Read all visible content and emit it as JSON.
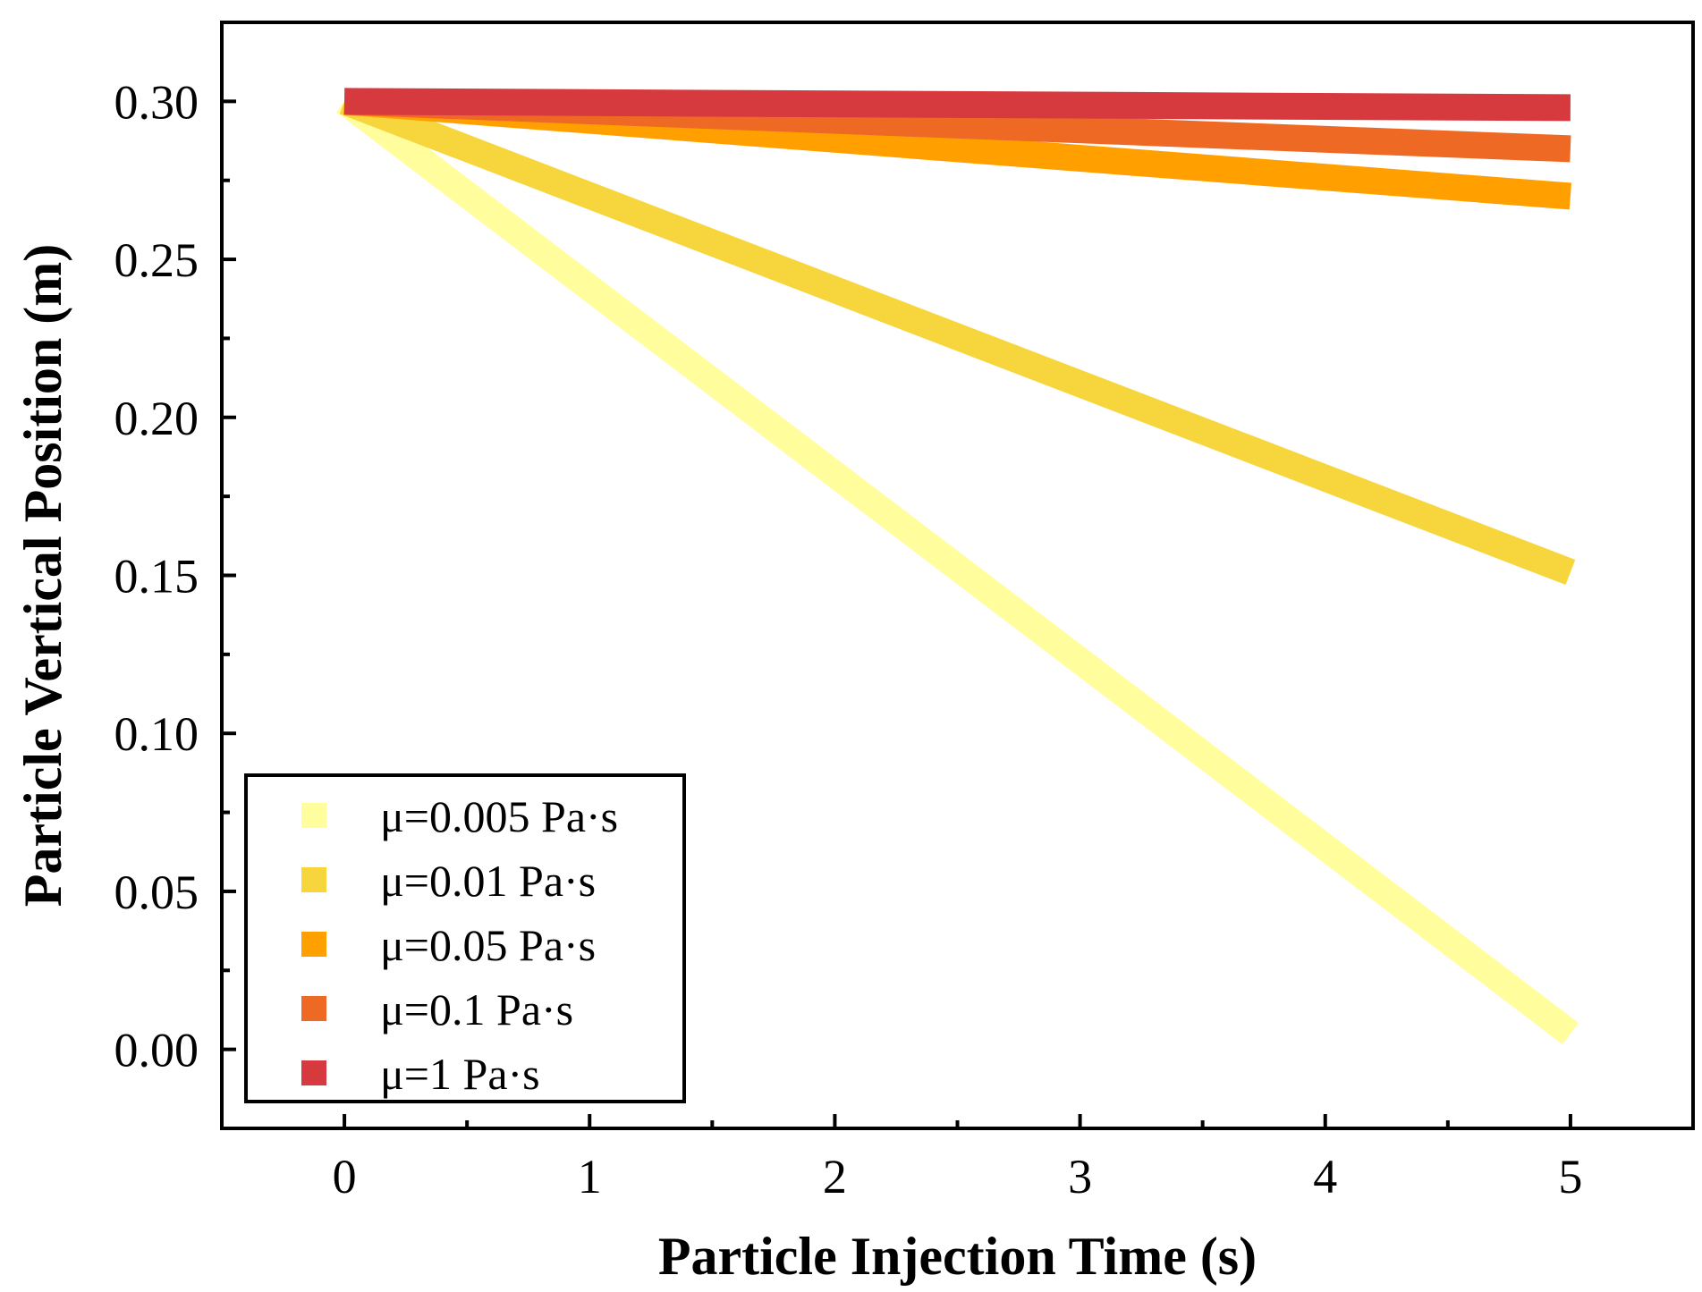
{
  "chart_data": {
    "type": "line",
    "title": "",
    "xlabel": "Particle Injection Time (s)",
    "ylabel": "Particle Vertical Position (m)",
    "xlim": [
      -0.5,
      5.5
    ],
    "ylim": [
      -0.025,
      0.325
    ],
    "xticks": [
      0,
      1,
      2,
      3,
      4,
      5
    ],
    "xtick_labels": [
      "0",
      "1",
      "2",
      "3",
      "4",
      "5"
    ],
    "yticks": [
      0.0,
      0.05,
      0.1,
      0.15,
      0.2,
      0.25,
      0.3
    ],
    "ytick_labels": [
      "0.00",
      "0.05",
      "0.10",
      "0.15",
      "0.20",
      "0.25",
      "0.30"
    ],
    "grid": false,
    "legend_position": "bottom-left",
    "series": [
      {
        "name": "μ=0.005 Pa·s",
        "color": "#FFFD9C",
        "x": [
          0,
          5
        ],
        "y": [
          0.3,
          0.005
        ]
      },
      {
        "name": "μ=0.01 Pa·s",
        "color": "#F7D53C",
        "x": [
          0,
          5
        ],
        "y": [
          0.3,
          0.151
        ]
      },
      {
        "name": "μ=0.05 Pa·s",
        "color": "#FFA000",
        "x": [
          0,
          5
        ],
        "y": [
          0.3,
          0.27
        ]
      },
      {
        "name": "μ=0.1 Pa·s",
        "color": "#EE6A24",
        "x": [
          0,
          5
        ],
        "y": [
          0.3,
          0.285
        ]
      },
      {
        "name": "μ=1 Pa·s",
        "color": "#D6393E",
        "x": [
          0,
          5
        ],
        "y": [
          0.3,
          0.298
        ]
      }
    ]
  }
}
